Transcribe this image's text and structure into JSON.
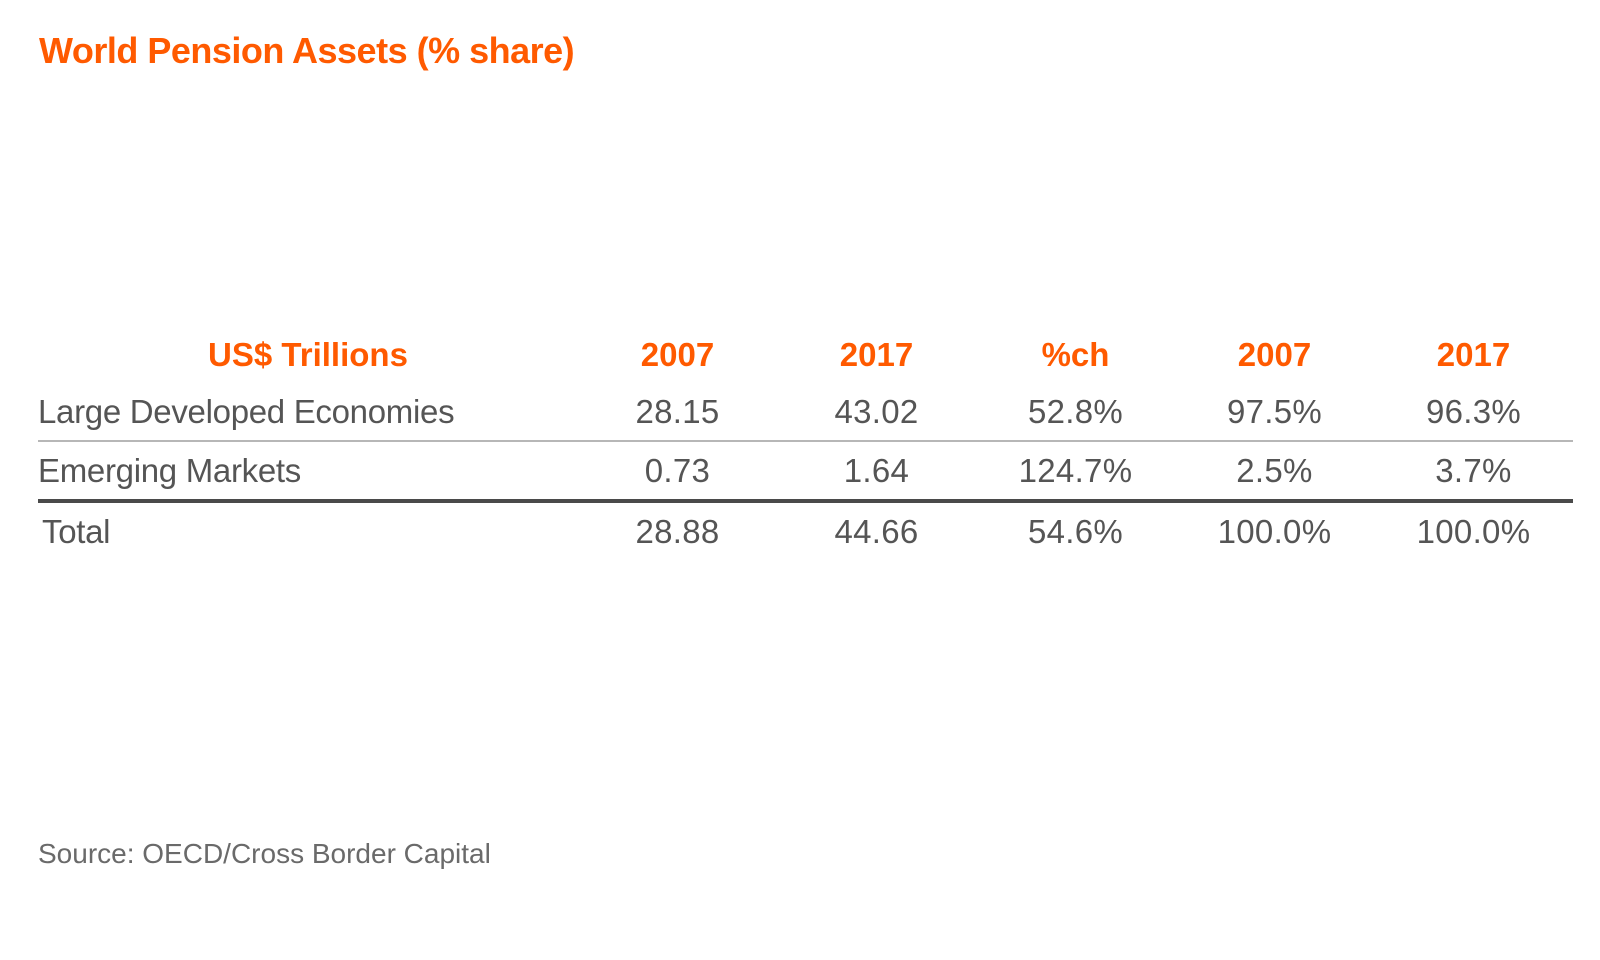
{
  "title": "World Pension Assets (% share)",
  "source": "Source: OECD/Cross Border Capital",
  "colors": {
    "accent": "#ff5a00",
    "text": "#555555",
    "rule_light": "#b7b7b7",
    "rule_dark": "#4a4a4a"
  },
  "chart_data": {
    "type": "table",
    "title": "World Pension Assets (% share)",
    "columns": [
      "US$ Trillions",
      "2007",
      "2017",
      "%ch",
      "2007",
      "2017"
    ],
    "rows": [
      [
        "Large Developed Economies",
        "28.15",
        "43.02",
        "52.8%",
        "97.5%",
        "96.3%"
      ],
      [
        "Emerging Markets",
        "0.73",
        "1.64",
        "124.7%",
        "2.5%",
        "3.7%"
      ],
      [
        "Total",
        "28.88",
        "44.66",
        "54.6%",
        "100.0%",
        "100.0%"
      ]
    ]
  }
}
